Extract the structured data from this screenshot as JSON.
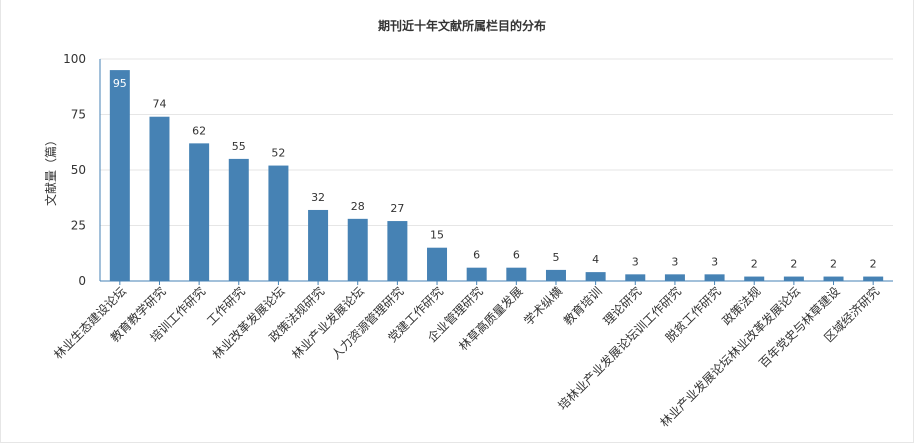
{
  "chart_data": {
    "type": "bar",
    "title": "期刊近十年文献所属栏目的分布",
    "xlabel": "",
    "ylabel": "文献量（篇）",
    "ylim": [
      0,
      100
    ],
    "yticks": [
      0,
      25,
      50,
      75,
      100
    ],
    "grid": true,
    "legend": "none",
    "categories": [
      "林业生态建设论坛",
      "教育教学研究",
      "培训工作研究",
      "工作研究",
      "林业改革发展论坛",
      "政策法规研究",
      "林业产业发展论坛",
      "人力资源管理研究",
      "党建工作研究",
      "企业管理研究",
      "林草高质量发展",
      "学术纵横",
      "教育培训",
      "理论研究",
      "培林业产业发展论坛训工作研究",
      "脱贫工作研究",
      "政策法规",
      "林业产业发展论坛林业改革发展论坛",
      "百年党史与林草建设",
      "区域经济研究"
    ],
    "values": [
      95,
      74,
      62,
      55,
      52,
      32,
      28,
      27,
      15,
      6,
      6,
      5,
      4,
      3,
      3,
      3,
      2,
      2,
      2,
      2
    ],
    "colors": {
      "bar": "#4682b4",
      "grid": "#e6e6e6",
      "axis": "#4682b4"
    }
  }
}
